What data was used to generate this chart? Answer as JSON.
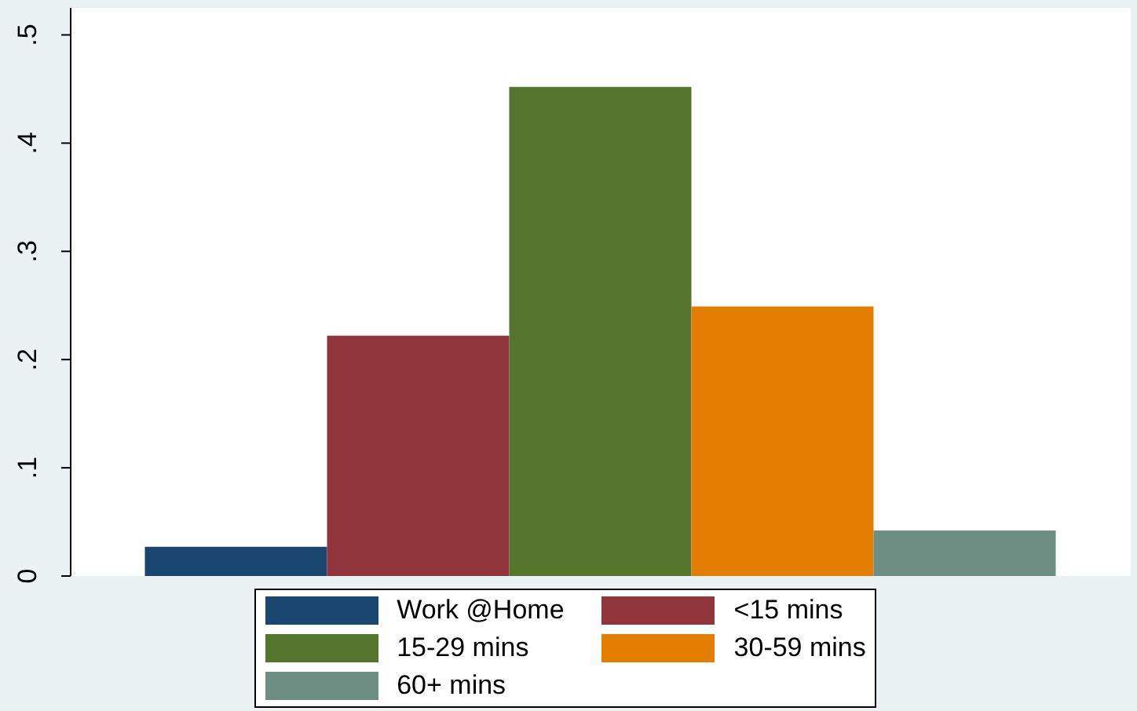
{
  "chart_data": {
    "type": "bar",
    "categories": [
      null
    ],
    "series": [
      {
        "name": "Work @Home",
        "color": "#1a476f",
        "values": [
          0.027
        ]
      },
      {
        "name": "<15 mins",
        "color": "#90353b",
        "values": [
          0.222
        ]
      },
      {
        "name": "15-29 mins",
        "color": "#55752f",
        "values": [
          0.452
        ]
      },
      {
        "name": "30-59 mins",
        "color": "#e37e00",
        "values": [
          0.249
        ]
      },
      {
        "name": "60+ mins",
        "color": "#6e8e84",
        "values": [
          0.042
        ]
      }
    ],
    "ylim": [
      0,
      0.525
    ],
    "yticks": [
      0,
      {
        "value": 0.1,
        "label": ".1"
      },
      {
        "value": 0.2,
        "label": ".2"
      },
      {
        "value": 0.3,
        "label": ".3"
      },
      {
        "value": 0.4,
        "label": ".4"
      },
      {
        "value": 0.5,
        "label": ".5"
      }
    ],
    "grid": false,
    "legend": "bottom"
  }
}
